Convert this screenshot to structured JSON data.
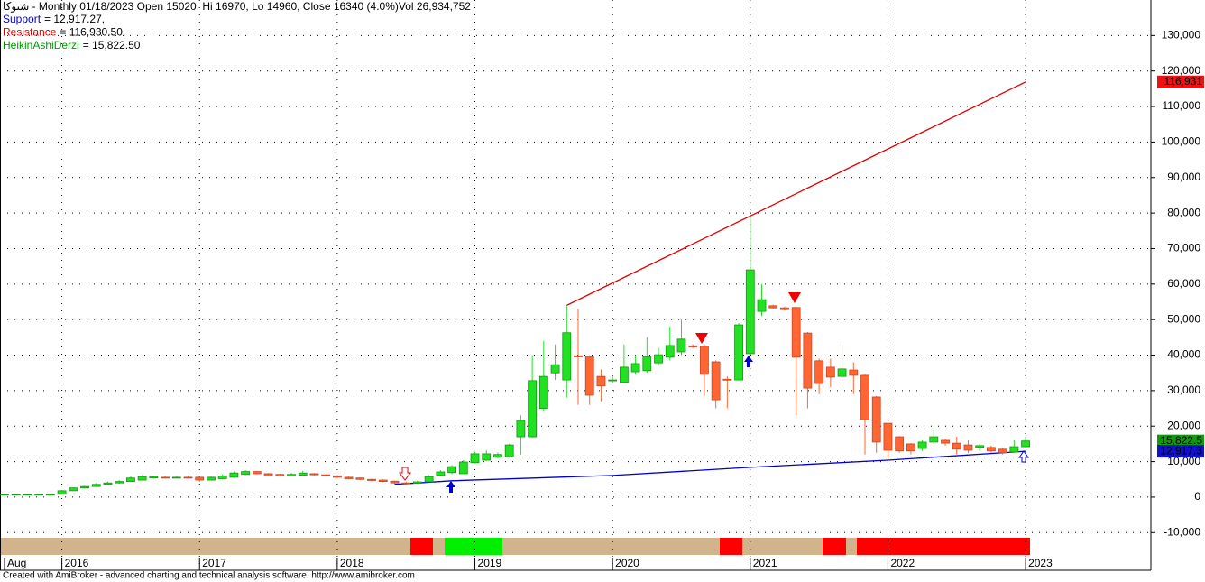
{
  "chart_data": {
    "type": "candlestick",
    "title": "شتوكا - Monthly 01/18/2023 Open 15020, Hi 16970, Lo 14960, Close 16340 (4.0%)Vol 26,934,752",
    "footer": "Created with AmiBroker - advanced charting and technical analysis software. http://www.amibroker.com",
    "up_color": "#22e022",
    "down_color": "#ff6633",
    "categories": [
      "Aug",
      null,
      null,
      null,
      null,
      "2016",
      null,
      null,
      null,
      null,
      null,
      null,
      null,
      null,
      null,
      null,
      null,
      "2017",
      null,
      null,
      null,
      null,
      null,
      null,
      null,
      null,
      null,
      null,
      null,
      "2018",
      null,
      null,
      null,
      null,
      null,
      null,
      null,
      null,
      null,
      null,
      null,
      "2019",
      null,
      null,
      null,
      null,
      null,
      null,
      null,
      null,
      null,
      null,
      null,
      "2020",
      null,
      null,
      null,
      null,
      null,
      null,
      null,
      null,
      null,
      null,
      null,
      "2021",
      null,
      null,
      null,
      null,
      null,
      null,
      null,
      null,
      null,
      null,
      null,
      "2022",
      null,
      null,
      null,
      null,
      null,
      null,
      null,
      null,
      null,
      null,
      null,
      "2023"
    ],
    "open": [
      800,
      800,
      800,
      800,
      800,
      800,
      1800,
      2600,
      3000,
      3600,
      4000,
      4400,
      4800,
      5400,
      5600,
      5500,
      5600,
      5600,
      4800,
      5200,
      5600,
      6400,
      7200,
      6600,
      6400,
      6000,
      6200,
      6600,
      6300,
      6000,
      5600,
      5400,
      5000,
      4800,
      4500,
      4000,
      3900,
      4300,
      6100,
      6900,
      6600,
      9700,
      10400,
      11200,
      11400,
      17000,
      17000,
      25000,
      35000,
      33000,
      39800,
      39500,
      34000,
      32800,
      32300,
      35300,
      35600,
      37800,
      39400,
      40900,
      42600,
      42500,
      38100,
      33200,
      33000,
      40400,
      52300,
      53900,
      53300,
      53400,
      46200,
      38400,
      36600,
      34000,
      35800,
      34300,
      28200,
      20800,
      17000,
      15000,
      13700,
      15500,
      16000,
      15200,
      14700,
      14000,
      14000,
      13500,
      12700,
      14200
    ],
    "high": [
      800,
      800,
      800,
      800,
      800,
      2000,
      2800,
      3200,
      4000,
      4400,
      4800,
      5800,
      6200,
      6000,
      6000,
      5900,
      6000,
      5800,
      5800,
      6400,
      7200,
      7600,
      7400,
      6800,
      6600,
      6800,
      7400,
      6800,
      6400,
      6200,
      5800,
      5500,
      5200,
      5000,
      4600,
      4400,
      4600,
      6200,
      7600,
      9000,
      10400,
      12800,
      13200,
      12600,
      15000,
      23000,
      40000,
      44000,
      43000,
      54000,
      53000,
      40000,
      36000,
      34000,
      43000,
      40000,
      45000,
      42000,
      48000,
      50000,
      43000,
      43000,
      38500,
      34000,
      49000,
      79000,
      60000,
      54200,
      53600,
      53500,
      46500,
      39000,
      39000,
      43000,
      38000,
      34500,
      28500,
      21000,
      17200,
      15200,
      16000,
      19500,
      16500,
      17000,
      16000,
      15000,
      14500,
      14000,
      16000,
      16970
    ],
    "low": [
      800,
      800,
      800,
      800,
      800,
      700,
      1700,
      2400,
      2900,
      3400,
      3800,
      4300,
      4700,
      5200,
      5300,
      5300,
      5400,
      4400,
      4700,
      5000,
      5400,
      6200,
      6400,
      5800,
      5800,
      5900,
      6100,
      6100,
      5800,
      5400,
      5000,
      4800,
      4500,
      4200,
      3800,
      3500,
      3700,
      4200,
      5800,
      6500,
      6500,
      9500,
      10200,
      11000,
      11200,
      12000,
      16800,
      24000,
      33000,
      28000,
      26000,
      26000,
      27000,
      32000,
      32000,
      34500,
      35000,
      37000,
      38500,
      40000,
      42000,
      28500,
      25000,
      25000,
      33000,
      40000,
      51000,
      53000,
      52500,
      23000,
      25000,
      29000,
      31000,
      31000,
      29000,
      12000,
      12500,
      11000,
      12500,
      12000,
      13000,
      15000,
      14500,
      12000,
      12500,
      13000,
      12500,
      12000,
      12500,
      14000
    ],
    "close": [
      800,
      800,
      800,
      800,
      800,
      1800,
      2600,
      3000,
      3600,
      4000,
      4400,
      5400,
      5800,
      5800,
      5500,
      5600,
      5500,
      4800,
      5600,
      6000,
      6800,
      7200,
      6600,
      6000,
      6000,
      6400,
      6800,
      6300,
      6000,
      5600,
      5200,
      5000,
      4700,
      4400,
      4000,
      3800,
      4300,
      5800,
      7100,
      8600,
      9900,
      12200,
      12200,
      12000,
      14700,
      21600,
      32800,
      34000,
      37300,
      46300,
      39500,
      28700,
      31300,
      33000,
      36600,
      37600,
      39600,
      40100,
      42700,
      44500,
      42300,
      34600,
      27400,
      33000,
      48500,
      64000,
      55600,
      53300,
      52800,
      39400,
      30700,
      32000,
      33800,
      36100,
      34300,
      21800,
      15500,
      13200,
      13000,
      13000,
      15500,
      17000,
      15200,
      13500,
      13200,
      14500,
      13000,
      12500,
      14200,
      15822.5
    ],
    "series": [
      {
        "name": "Support",
        "color": "#0000cc",
        "legend": "= 12,917.27,",
        "x": [
          34,
          39,
          53,
          65,
          77,
          89
        ],
        "values": [
          3600,
          4600,
          6100,
          8400,
          10400,
          12917.27
        ]
      },
      {
        "name": "Resistance",
        "color": "#dd0000",
        "legend": "= 116,930.50,",
        "x": [
          49,
          89
        ],
        "values": [
          54000,
          116930.5
        ]
      },
      {
        "name": "HeikinAshiDerzi",
        "color": "#009900",
        "legend": "= 15,822.50"
      }
    ],
    "price_labels": [
      {
        "value": 116931,
        "label": "116,931",
        "color": "#ee1111"
      },
      {
        "value": 15822.5,
        "label": "15,822.5",
        "color": "#119911"
      },
      {
        "value": 12917.3,
        "label": "12,917.3",
        "color": "#1111cc"
      }
    ],
    "ylim": [
      -20600,
      140000
    ],
    "yticks": [
      {
        "value": 130000,
        "label": "130,000"
      },
      {
        "value": 120000,
        "label": "120,000"
      },
      {
        "value": 110000,
        "label": "110,000"
      },
      {
        "value": 100000,
        "label": "100,000"
      },
      {
        "value": 90000,
        "label": "90,000"
      },
      {
        "value": 80000,
        "label": "80,000"
      },
      {
        "value": 70000,
        "label": "70,000"
      },
      {
        "value": 60000,
        "label": "60,000"
      },
      {
        "value": 50000,
        "label": "50,000"
      },
      {
        "value": 40000,
        "label": "40,000"
      },
      {
        "value": 30000,
        "label": "30,000"
      },
      {
        "value": 20000,
        "label": "20,000"
      },
      {
        "value": 10000,
        "label": "10,000"
      },
      0,
      {
        "value": -10000,
        "label": "-10,000"
      }
    ],
    "grid": true
  }
}
